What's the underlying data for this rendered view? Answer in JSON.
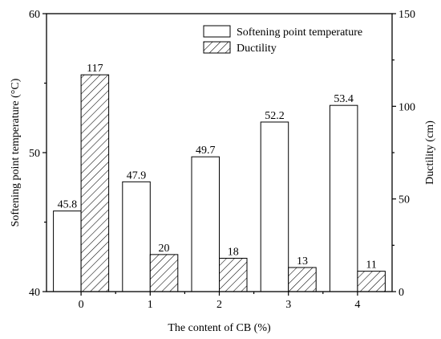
{
  "chart_data": {
    "type": "bar",
    "categories": [
      "0",
      "1",
      "2",
      "3",
      "4"
    ],
    "xlabel": "The content of CB (%)",
    "series": [
      {
        "name": "Softening point temperature",
        "axis": "left",
        "fill": "white",
        "values": [
          45.8,
          47.9,
          49.7,
          52.2,
          53.4
        ],
        "labels": [
          "45.8",
          "47.9",
          "49.7",
          "52.2",
          "53.4"
        ]
      },
      {
        "name": "Ductility",
        "axis": "right",
        "fill": "hatched",
        "values": [
          117,
          20,
          18,
          13,
          11
        ],
        "labels": [
          "117",
          "20",
          "18",
          "13",
          "11"
        ]
      }
    ],
    "y_left": {
      "label": "Softening point temperature (°C)",
      "ylim": [
        40,
        60
      ],
      "ticks": [
        40,
        50,
        60
      ],
      "tick_labels": [
        "40",
        "50",
        "60"
      ]
    },
    "y_right": {
      "label": "Ductility (cm)",
      "ylim": [
        0,
        150
      ],
      "ticks": [
        0,
        50,
        100,
        150
      ],
      "tick_labels": [
        "0",
        "50",
        "100",
        "150"
      ]
    },
    "legend_position": "top-right",
    "grid": false
  }
}
